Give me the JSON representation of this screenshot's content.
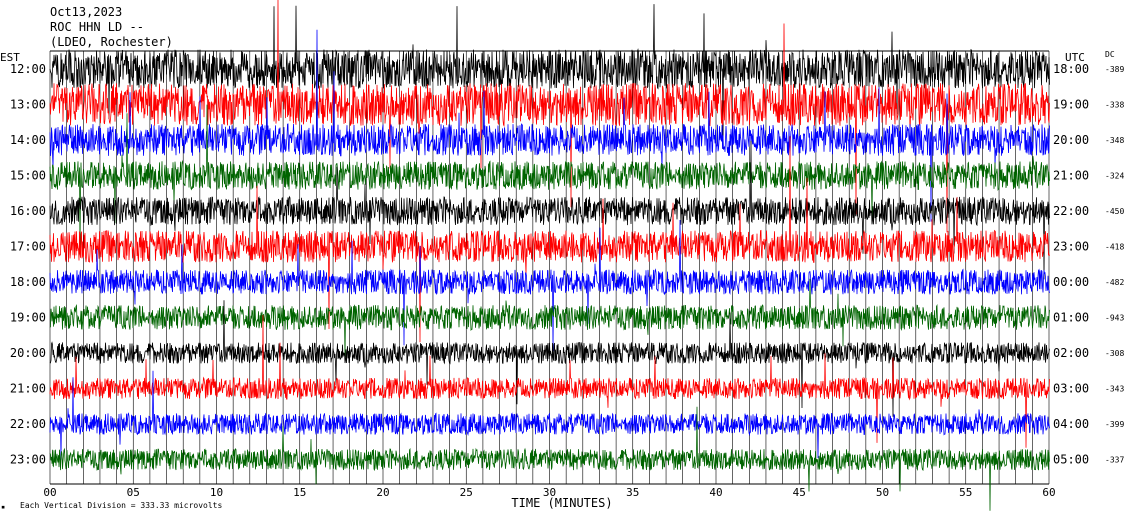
{
  "header": {
    "line1": "Oct13,2023",
    "line2": "ROC HHN LD --",
    "line3": "(LDEO, Rochester)"
  },
  "left_axis_label": "EST",
  "right_axis_label": "UTC",
  "dc_label": "DC",
  "footer_note": "Each Vertical Division =  333.33 microvolts",
  "footer_mark": "▪",
  "colors": {
    "black": "#000000",
    "red": "#ff0000",
    "blue": "#0000ff",
    "green": "#006400"
  },
  "chart_data": {
    "type": "line",
    "title": "Oct13,2023",
    "xlabel": "TIME (MINUTES)",
    "ylabel": "",
    "x_range": [
      0,
      60
    ],
    "x_ticks": [
      "00",
      "05",
      "10",
      "15",
      "20",
      "25",
      "30",
      "35",
      "40",
      "45",
      "50",
      "55",
      "60"
    ],
    "traces": [
      {
        "est": "12:00",
        "utc": "18:00",
        "dc": "-389",
        "color": "black",
        "amplitude": 0.55
      },
      {
        "est": "13:00",
        "utc": "19:00",
        "dc": "-338",
        "color": "red",
        "amplitude": 0.6
      },
      {
        "est": "14:00",
        "utc": "20:00",
        "dc": "-348",
        "color": "blue",
        "amplitude": 0.45
      },
      {
        "est": "15:00",
        "utc": "21:00",
        "dc": "-324",
        "color": "green",
        "amplitude": 0.4
      },
      {
        "est": "16:00",
        "utc": "22:00",
        "dc": "-450",
        "color": "black",
        "amplitude": 0.4
      },
      {
        "est": "17:00",
        "utc": "23:00",
        "dc": "-418",
        "color": "red",
        "amplitude": 0.45
      },
      {
        "est": "18:00",
        "utc": "00:00",
        "dc": "-482",
        "color": "blue",
        "amplitude": 0.35
      },
      {
        "est": "19:00",
        "utc": "01:00",
        "dc": "-943",
        "color": "green",
        "amplitude": 0.35
      },
      {
        "est": "20:00",
        "utc": "02:00",
        "dc": "-308",
        "color": "black",
        "amplitude": 0.3
      },
      {
        "est": "21:00",
        "utc": "03:00",
        "dc": "-343",
        "color": "red",
        "amplitude": 0.3
      },
      {
        "est": "22:00",
        "utc": "04:00",
        "dc": "-399",
        "color": "blue",
        "amplitude": 0.3
      },
      {
        "est": "23:00",
        "utc": "05:00",
        "dc": "-337",
        "color": "green",
        "amplitude": 0.3
      }
    ]
  }
}
